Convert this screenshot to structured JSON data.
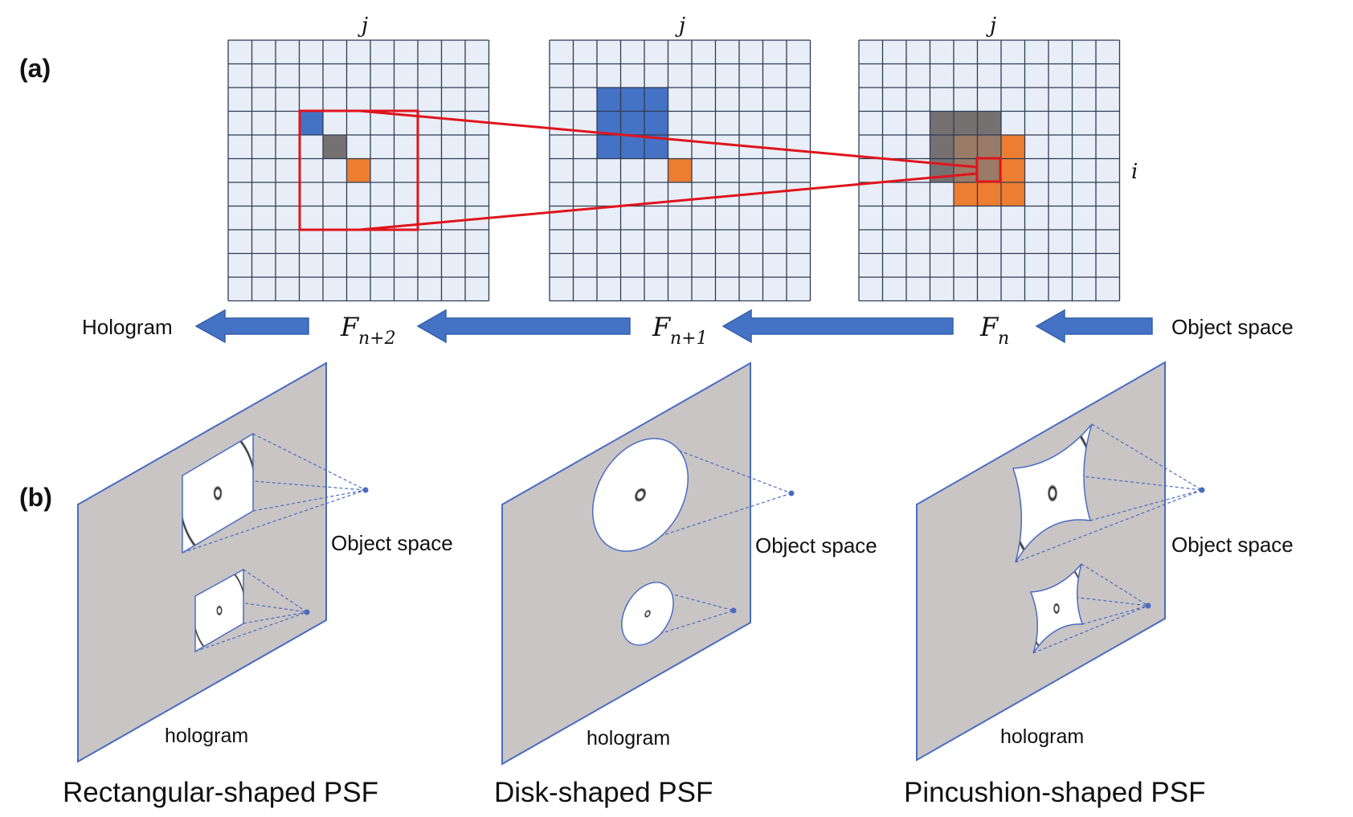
{
  "panels": {
    "a": "(a)",
    "b": "(b)"
  },
  "grid_axes": {
    "column": "j",
    "row": "i"
  },
  "pipeline": {
    "hologram": "Hologram",
    "object_space": "Object space",
    "frames": [
      {
        "base": "F",
        "sub": "n+2"
      },
      {
        "base": "F",
        "sub": "n+1"
      },
      {
        "base": "F",
        "sub": "n"
      }
    ]
  },
  "psf_panels": [
    {
      "shape": "rectangle",
      "plane_label": "hologram",
      "object_label": "Object space",
      "caption": "Rectangular-shaped PSF"
    },
    {
      "shape": "disk",
      "plane_label": "hologram",
      "object_label": "Object space",
      "caption": "Disk-shaped PSF"
    },
    {
      "shape": "pincushion",
      "plane_label": "hologram",
      "object_label": "Object space",
      "caption": "Pincushion-shaped PSF"
    }
  ],
  "colors": {
    "grid_fill": "#e8eef8",
    "grid_line": "#2f3b52",
    "blue": "#4472c4",
    "gray": "#767171",
    "orange": "#ed7d31",
    "mix": "#9a7b67",
    "red": "#e0141c",
    "arrow": "#4472c4",
    "plane": "#c9c5c5",
    "plane_edge": "#4a6cc0"
  }
}
